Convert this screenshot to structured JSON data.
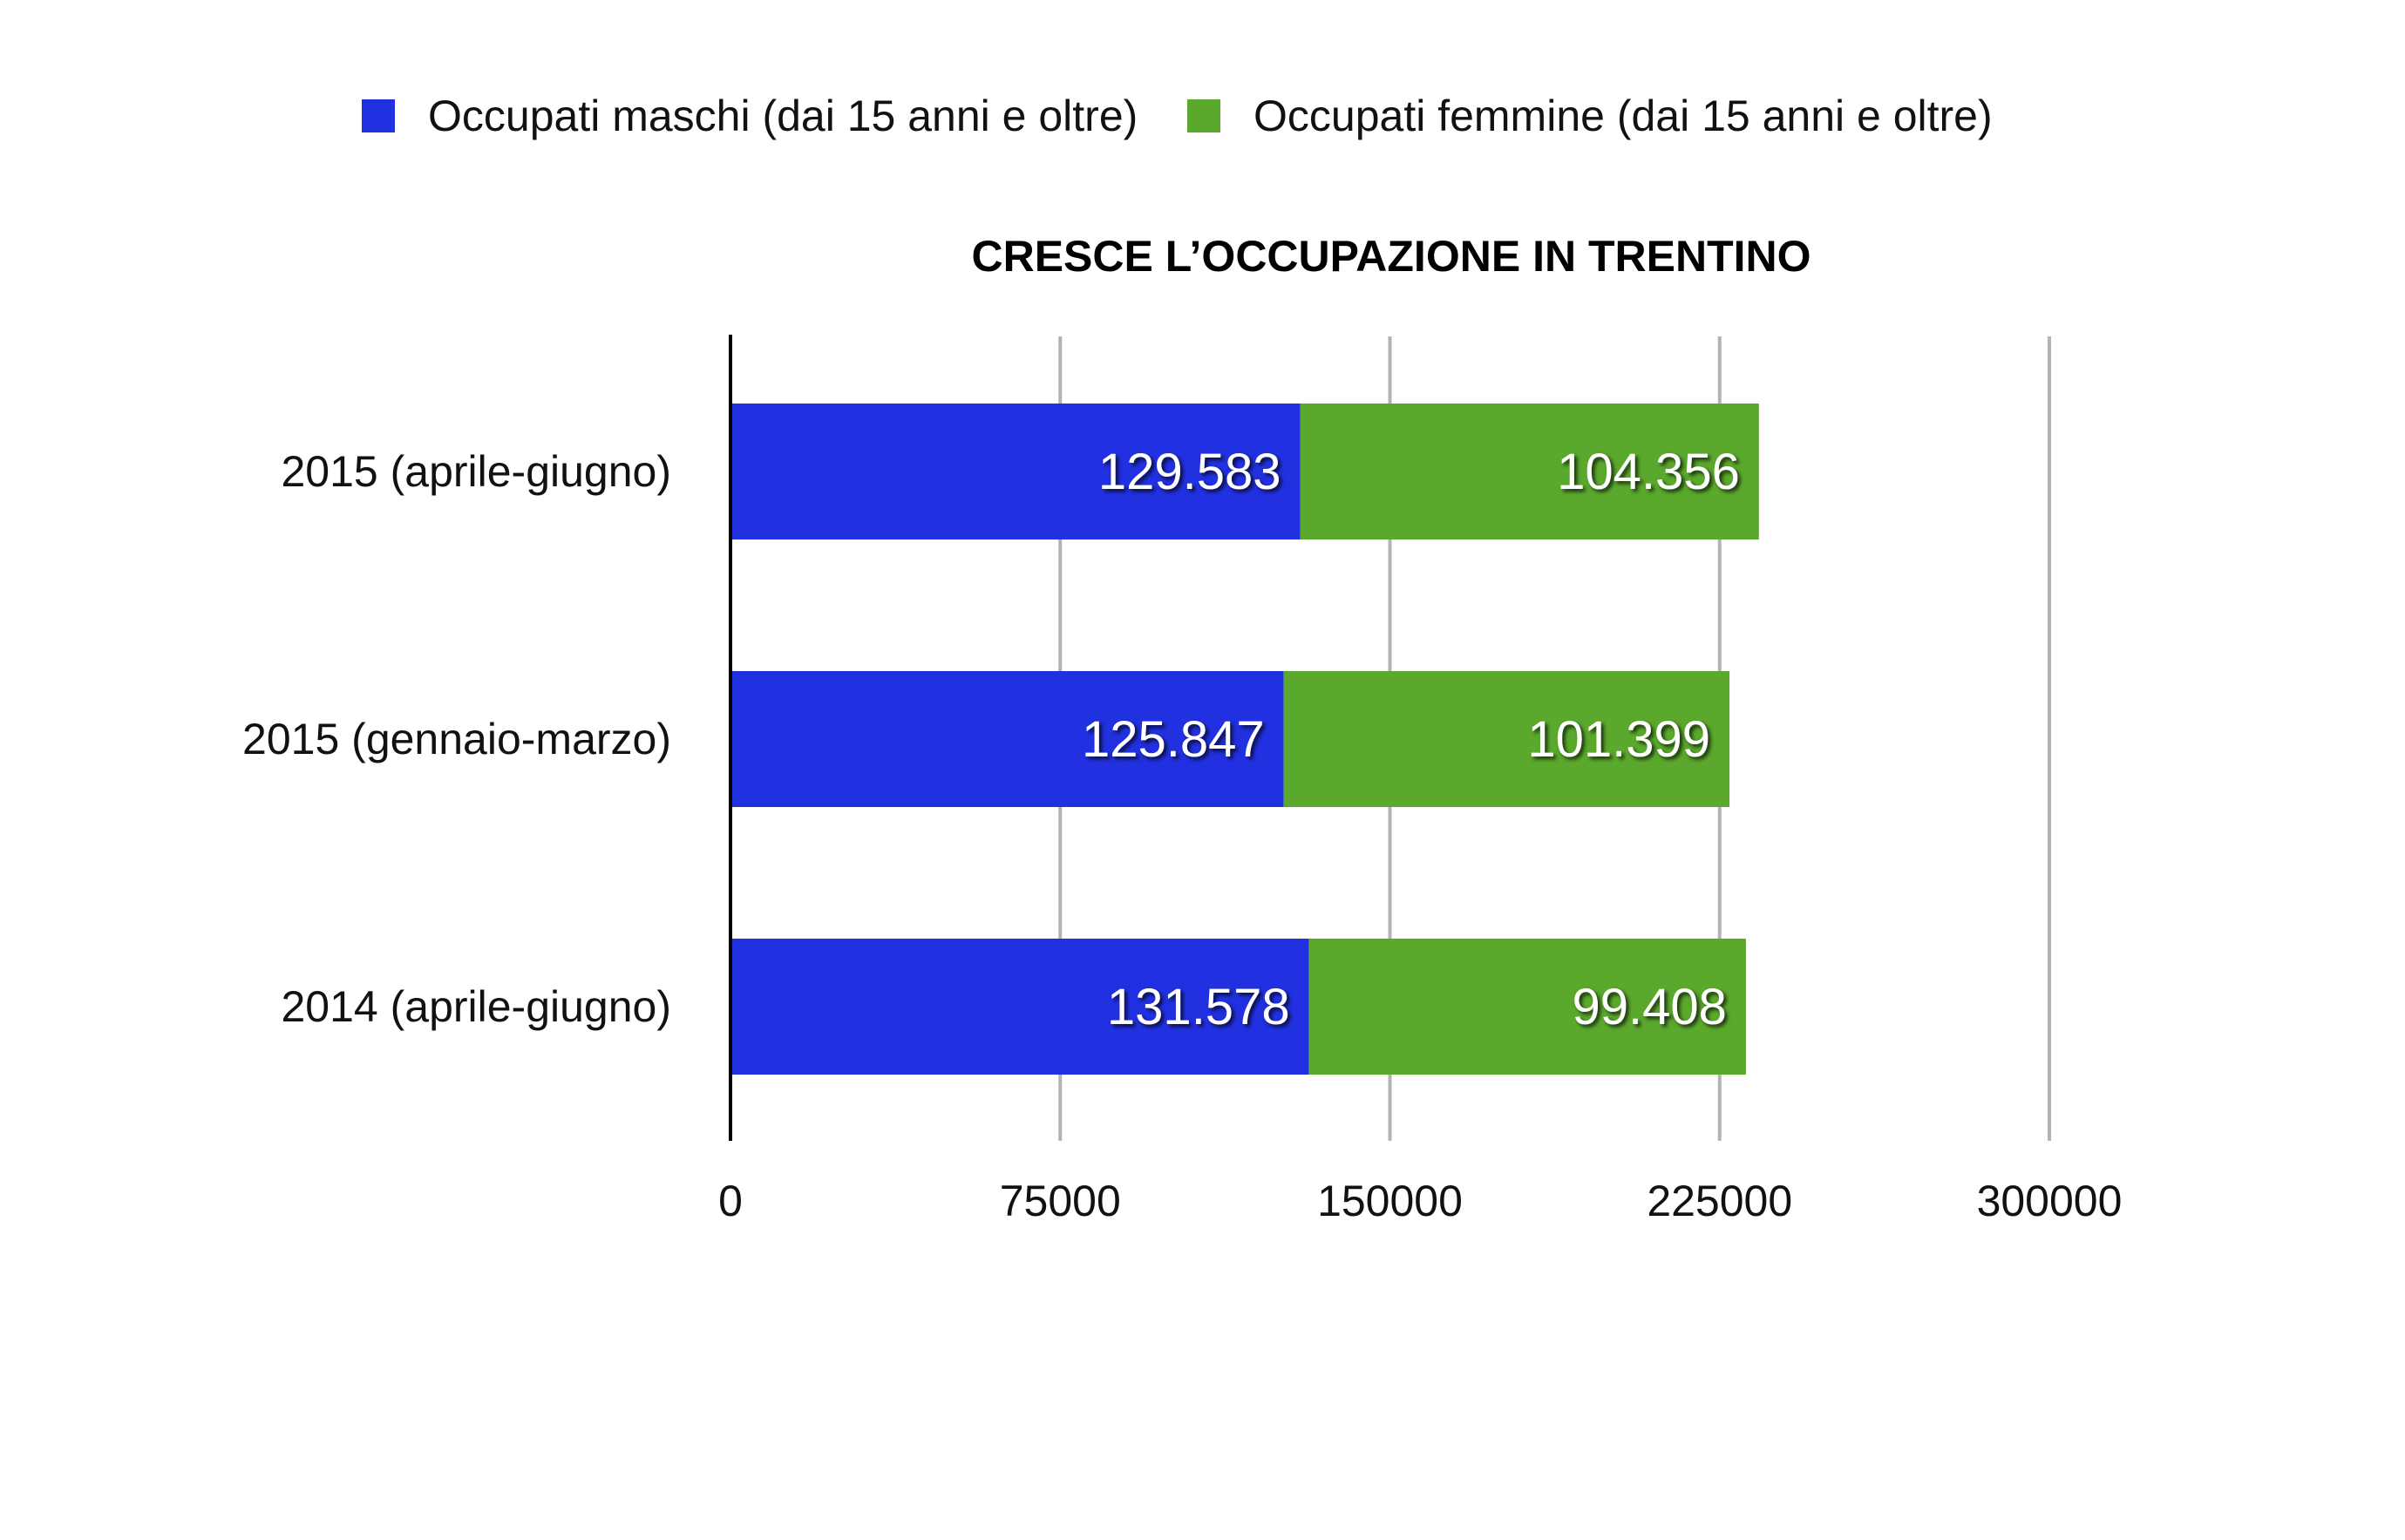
{
  "chart_data": {
    "type": "bar",
    "orientation": "horizontal",
    "stacked": true,
    "title": "CRESCE L’OCCUPAZIONE IN TRENTINO",
    "xlabel": "",
    "ylabel": "",
    "categories": [
      "2015 (aprile-giugno)",
      "2015 (gennaio-marzo)",
      "2014 (aprile-giugno)"
    ],
    "series": [
      {
        "name": "Occupati maschi (dai 15 anni e oltre)",
        "values": [
          129583,
          125847,
          131578
        ],
        "labels": [
          "129.583",
          "125.847",
          "131.578"
        ],
        "color": "#2130e0"
      },
      {
        "name": "Occupati femmine (dai 15 anni e oltre)",
        "values": [
          104356,
          101399,
          99408
        ],
        "labels": [
          "104.356",
          "101.399",
          "99.408"
        ],
        "color": "#5aa82c"
      }
    ],
    "xlim": [
      0,
      300000
    ],
    "xticks": [
      0,
      75000,
      150000,
      225000,
      300000
    ],
    "xtick_labels": [
      "0",
      "75000",
      "150000",
      "225000",
      "300000"
    ],
    "grid": true,
    "legend_position": "top"
  }
}
